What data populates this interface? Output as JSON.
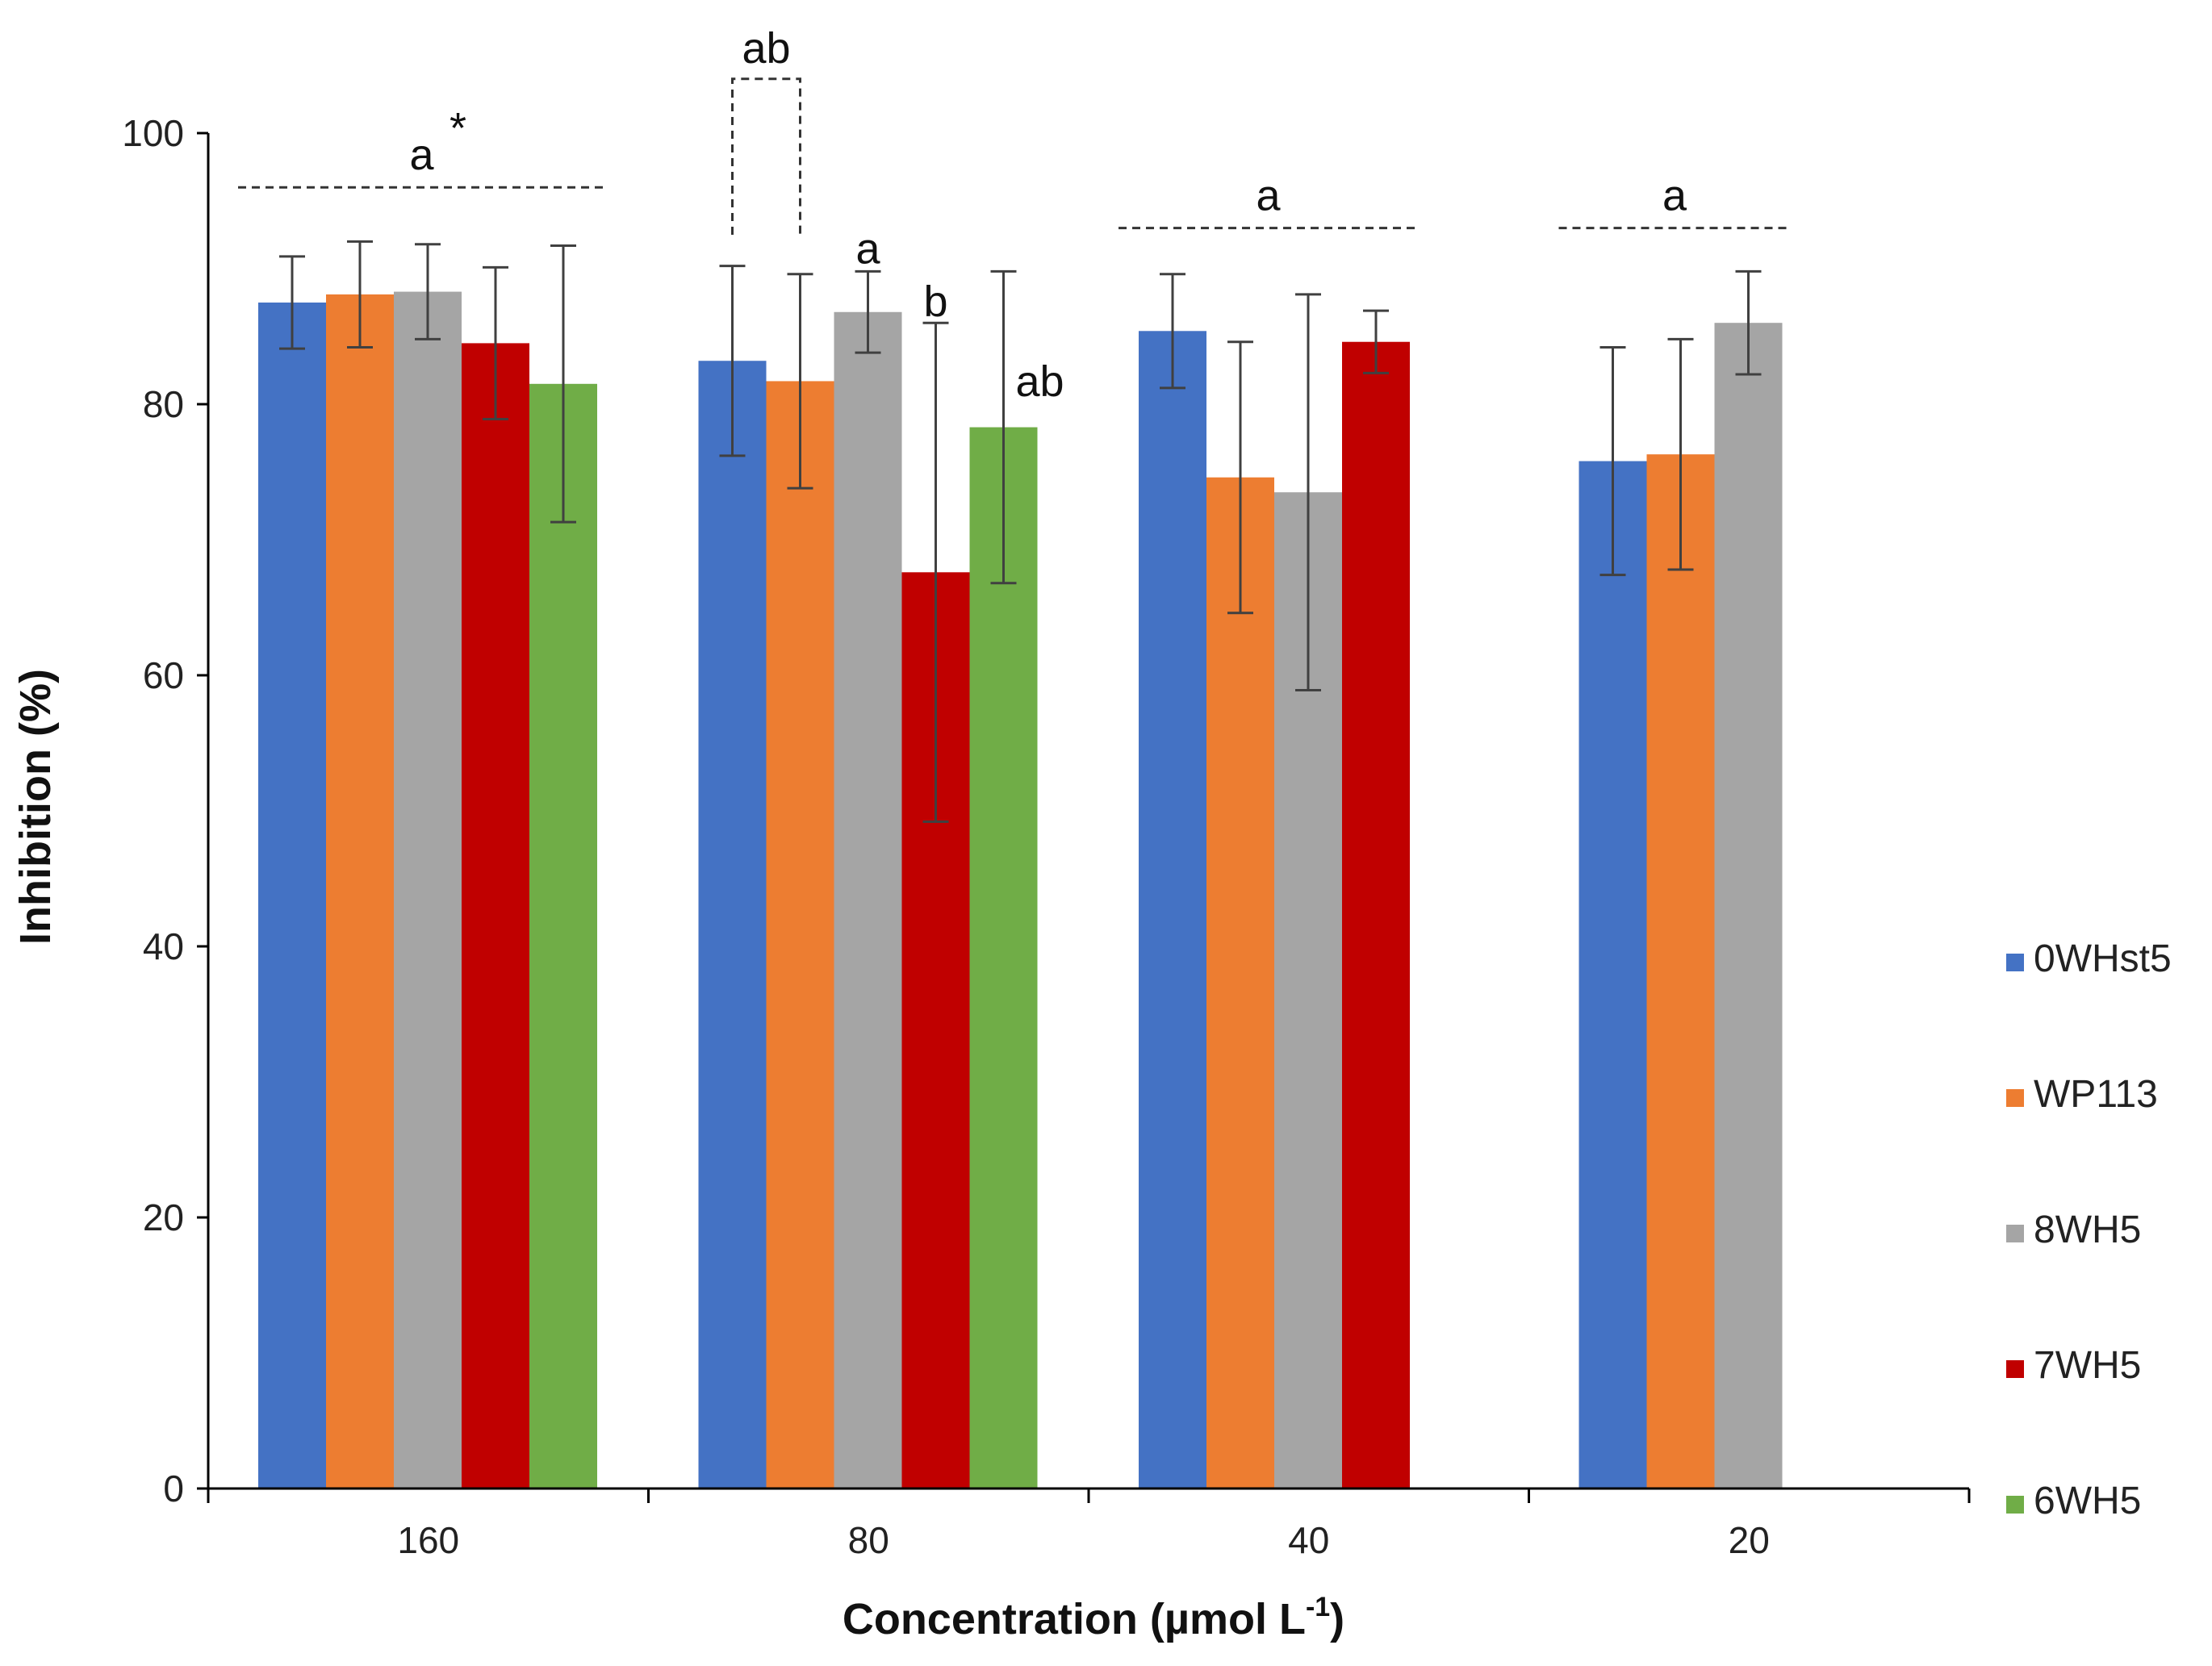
{
  "chart_data": {
    "type": "bar",
    "xlabel": "Concentration (µmol L",
    "xlabel_sup": "-1",
    "xlabel_end": ")",
    "ylabel": "Inhibition (%)",
    "ylim": [
      0,
      100
    ],
    "yticks": [
      0,
      20,
      40,
      60,
      80,
      100
    ],
    "grid": false,
    "legend_position": "right",
    "categories": [
      "160",
      "80",
      "40",
      "20"
    ],
    "series": [
      {
        "name": "0WHst5",
        "color": "#4472C4",
        "values": [
          87.5,
          83.2,
          85.4,
          75.8
        ],
        "errors": [
          3.4,
          7.0,
          4.2,
          8.4
        ]
      },
      {
        "name": "WP113",
        "color": "#ED7D31",
        "values": [
          88.1,
          81.7,
          74.6,
          76.3
        ],
        "errors": [
          3.9,
          7.9,
          10.0,
          8.5
        ]
      },
      {
        "name": "8WH5",
        "color": "#A5A5A5",
        "values": [
          88.3,
          86.8,
          73.5,
          86.0
        ],
        "errors": [
          3.5,
          3.0,
          14.6,
          3.8
        ]
      },
      {
        "name": "7WH5",
        "color": "#C00000",
        "values": [
          84.5,
          67.6,
          84.6,
          null
        ],
        "errors": [
          5.6,
          18.4,
          2.3,
          null
        ]
      },
      {
        "name": "6WH5",
        "color": "#70AD47",
        "values": [
          81.5,
          78.3,
          null,
          null
        ],
        "errors": [
          10.2,
          11.5,
          null,
          null
        ]
      }
    ],
    "annotations": [
      {
        "text": "a",
        "star": "*",
        "category": 0,
        "kind": "group",
        "series_from": 0,
        "series_to": 4,
        "value": 96.0
      },
      {
        "text": "ab",
        "category": 1,
        "kind": "bracket",
        "series_from": 0,
        "series_to": 1,
        "value": 104.0
      },
      {
        "text": "a",
        "category": 1,
        "kind": "label",
        "series": 2,
        "value": 90.4
      },
      {
        "text": "b",
        "category": 1,
        "kind": "label",
        "series": 3,
        "value": 86.5
      },
      {
        "text": "ab",
        "category": 1,
        "kind": "label",
        "series": 4,
        "value": 80.6
      },
      {
        "text": "a",
        "category": 2,
        "kind": "group",
        "series_from": 0,
        "series_to": 3,
        "value": 93.0
      },
      {
        "text": "a",
        "category": 3,
        "kind": "group",
        "series_from": 0,
        "series_to": 2,
        "value": 93.0
      }
    ]
  }
}
